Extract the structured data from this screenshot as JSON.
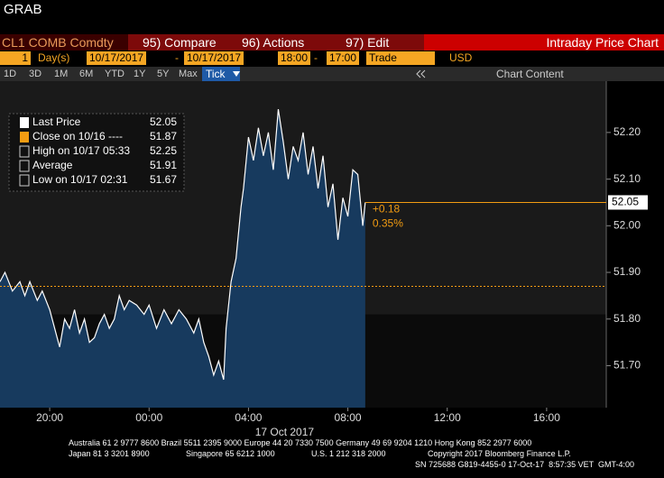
{
  "header": {
    "title": "GRAB"
  },
  "toolbar": {
    "ticker": "CL1 COMB Comdty",
    "buttons": [
      "95) Compare",
      "96) Actions",
      "97) Edit"
    ],
    "panel_title": "Intraday Price Chart"
  },
  "range_bar": {
    "period_num": "1",
    "period_unit": "Day(s)",
    "start": "10/17/2017",
    "dash": "-",
    "end": "10/17/2017",
    "time_start": "18:00",
    "time_end": "17:00",
    "field": "Trade",
    "currency": "USD"
  },
  "tab_bar": {
    "tabs": [
      "1D",
      "3D",
      "1M",
      "6M",
      "YTD",
      "1Y",
      "5Y",
      "Max"
    ],
    "active_tab": "Tick",
    "chart_content": "Chart Content"
  },
  "chart_data": {
    "type": "area",
    "legend_rows": [
      {
        "label": "Last Price",
        "value": 52.05,
        "color": "#ffffff"
      },
      {
        "label": "Close on 10/16 ----",
        "value": 51.87,
        "color": "#f39c12"
      },
      {
        "label": "High on 10/17 05:33",
        "value": 52.25,
        "color": "#ffffff"
      },
      {
        "label": "Average",
        "value": 51.91,
        "color": "#ffffff"
      },
      {
        "label": "Low on 10/17 02:31",
        "value": 51.67,
        "color": "#ffffff"
      }
    ],
    "x": [
      -6,
      -5.8,
      -5.5,
      -5.2,
      -5,
      -4.8,
      -4.5,
      -4.3,
      -4,
      -3.8,
      -3.6,
      -3.4,
      -3.2,
      -3,
      -2.8,
      -2.6,
      -2.4,
      -2.2,
      -2,
      -1.8,
      -1.6,
      -1.4,
      -1.2,
      -1,
      -0.8,
      -0.5,
      -0.2,
      0,
      0.3,
      0.6,
      0.9,
      1.2,
      1.5,
      1.8,
      2,
      2.2,
      2.4,
      2.6,
      2.8,
      3,
      3.1,
      3.3,
      3.5,
      3.7,
      3.8,
      4,
      4.2,
      4.4,
      4.6,
      4.8,
      5,
      5.2,
      5.4,
      5.6,
      5.8,
      6,
      6.2,
      6.4,
      6.6,
      6.8,
      7,
      7.2,
      7.4,
      7.6,
      7.8,
      8,
      8.2,
      8.4,
      8.6,
      8.7
    ],
    "series": [
      {
        "name": "Last Price",
        "color": "#ffffff",
        "fill": "#173a5e",
        "values": [
          51.88,
          51.9,
          51.86,
          51.88,
          51.85,
          51.88,
          51.84,
          51.86,
          51.82,
          51.78,
          51.74,
          51.8,
          51.78,
          51.82,
          51.77,
          51.8,
          51.75,
          51.76,
          51.79,
          51.81,
          51.78,
          51.8,
          51.85,
          51.82,
          51.84,
          51.83,
          51.81,
          51.83,
          51.78,
          51.82,
          51.79,
          51.82,
          51.8,
          51.77,
          51.8,
          51.75,
          51.72,
          51.68,
          51.71,
          51.67,
          51.78,
          51.88,
          51.93,
          52.04,
          52.08,
          52.19,
          52.14,
          52.21,
          52.15,
          52.2,
          52.12,
          52.25,
          52.18,
          52.1,
          52.17,
          52.14,
          52.2,
          52.11,
          52.17,
          52.08,
          52.15,
          52.04,
          52.09,
          51.97,
          52.06,
          52.02,
          52.12,
          52.11,
          52,
          52.05
        ]
      }
    ],
    "annotations": [
      "+0.18",
      "0.35%"
    ],
    "xlim": [
      -6,
      18.4
    ],
    "xticks": [
      {
        "value": -4,
        "label": "20:00"
      },
      {
        "value": 0,
        "label": "00:00"
      },
      {
        "value": 4,
        "label": "04:00"
      },
      {
        "value": 8,
        "label": "08:00"
      },
      {
        "value": 12,
        "label": "12:00"
      },
      {
        "value": 16,
        "label": "16:00"
      }
    ],
    "x_label": "17 Oct 2017",
    "ylim": [
      51.61,
      52.31
    ],
    "yticks": [
      {
        "value": 51.7,
        "label": "51.70"
      },
      {
        "value": 51.8,
        "label": "51.80"
      },
      {
        "value": 51.9,
        "label": "51.90"
      },
      {
        "value": 52,
        "label": "52.00"
      },
      {
        "value": 52.1,
        "label": "52.10"
      },
      {
        "value": 52.2,
        "label": "52.20"
      }
    ]
  },
  "footer": {
    "line1": "Australia 61 2 9777 8600 Brazil 5511 2395 9000 Europe 44 20 7330 7500 Germany 49 69 9204 1210 Hong Kong 852 2977 6000",
    "line2": [
      "Japan 81 3 3201 8900",
      "Singapore 65 6212 1000",
      "U.S. 1 212 318 2000",
      "Copyright 2017 Bloomberg Finance L.P."
    ],
    "line3": "SN 725688 G819-4455-0 17-Oct-17  8:57:35 VET  GMT-4:00"
  }
}
